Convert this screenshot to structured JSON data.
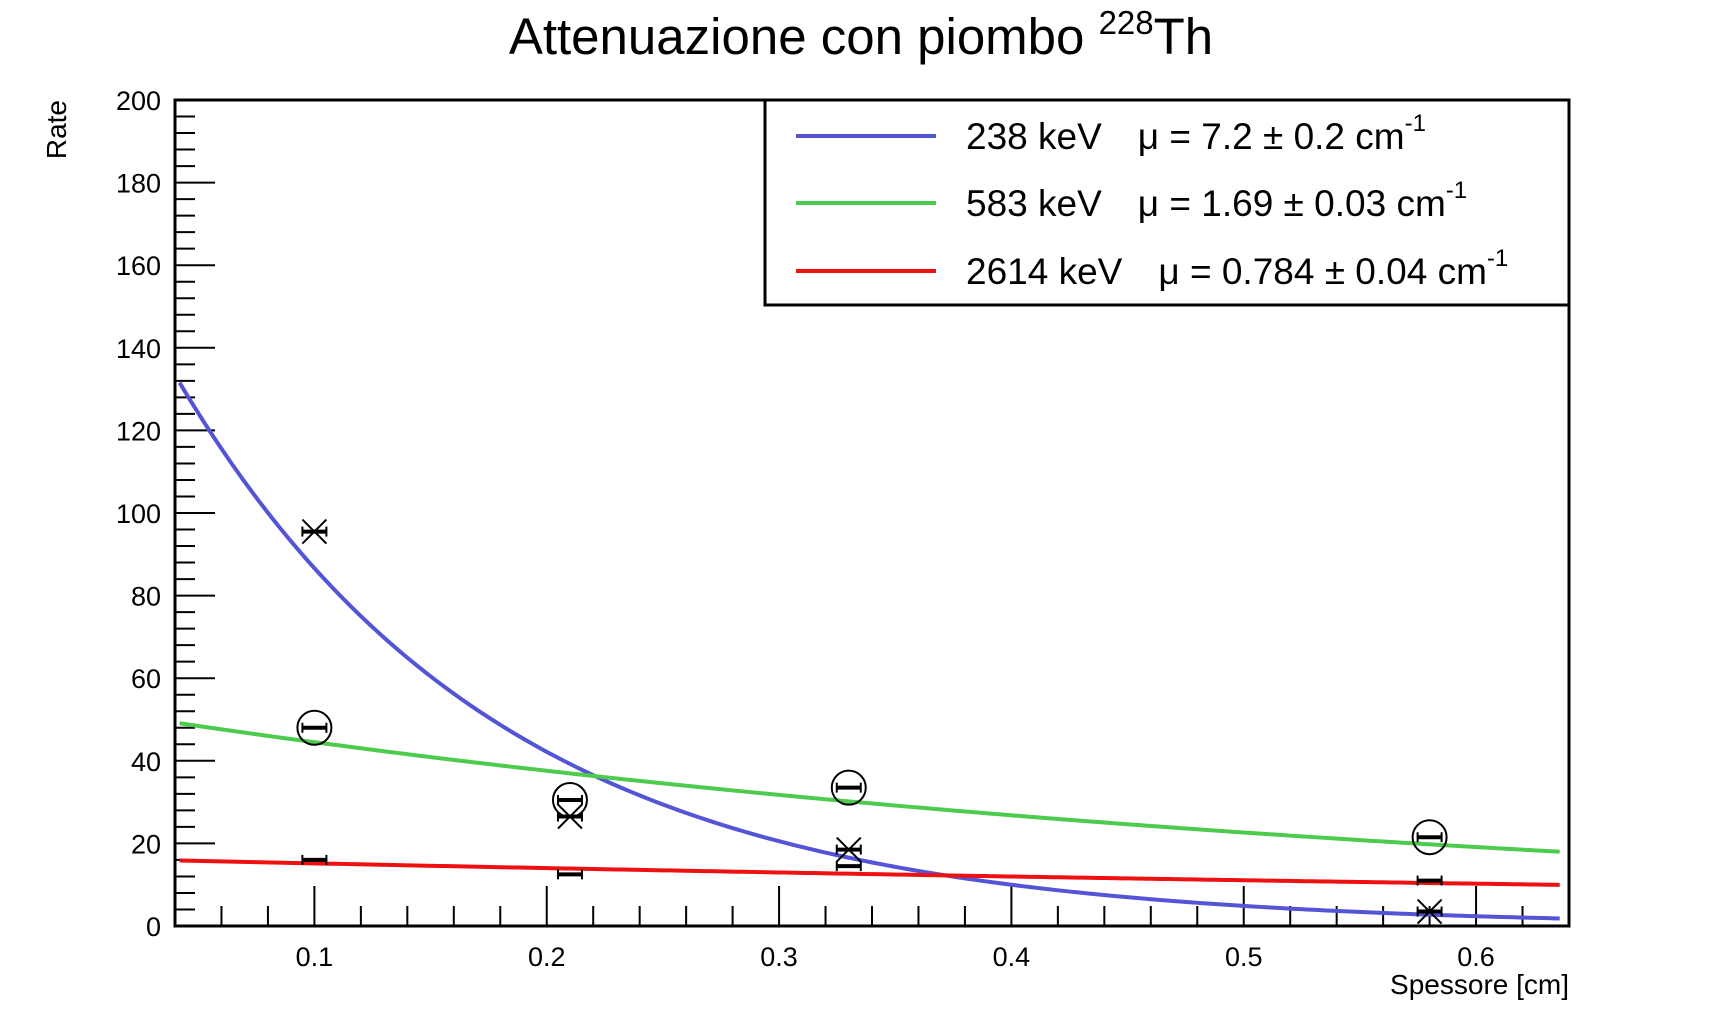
{
  "chart_data": {
    "type": "scatter",
    "title": {
      "main": "Attenuazione con piombo ",
      "isotope_mass": "228",
      "isotope_symbol": "Th"
    },
    "xlabel": "Spessore [cm]",
    "ylabel": "Rate",
    "xlim": [
      0.04,
      0.64
    ],
    "ylim": [
      0,
      200
    ],
    "x_ticks": [
      0.1,
      0.2,
      0.3,
      0.4,
      0.5,
      0.6
    ],
    "x_tick_labels": [
      "0.1",
      "0.2",
      "0.3",
      "0.4",
      "0.5",
      "0.6"
    ],
    "y_ticks": [
      0,
      20,
      40,
      60,
      80,
      100,
      120,
      140,
      160,
      180,
      200
    ],
    "y_tick_labels": [
      "0",
      "20",
      "40",
      "60",
      "80",
      "100",
      "120",
      "140",
      "160",
      "180",
      "200"
    ],
    "grid": false,
    "legend_position": "top-right",
    "series": [
      {
        "name": "238 keV",
        "legend_mu": "μ = 7.2 ± 0.2 cm",
        "legend_exp": "-1",
        "color": "#5454d6",
        "marker": "cross",
        "points": [
          {
            "x": 0.1,
            "y": 95.5
          },
          {
            "x": 0.21,
            "y": 26.5
          },
          {
            "x": 0.33,
            "y": 18.5
          },
          {
            "x": 0.58,
            "y": 3.5
          }
        ],
        "fit": {
          "amplitude": 178.0,
          "mu": 7.2
        }
      },
      {
        "name": "583 keV",
        "legend_mu": "μ = 1.69 ± 0.03 cm",
        "legend_exp": "-1",
        "color": "#4ccb4c",
        "marker": "circle",
        "points": [
          {
            "x": 0.1,
            "y": 48
          },
          {
            "x": 0.21,
            "y": 30.5
          },
          {
            "x": 0.33,
            "y": 33.5
          },
          {
            "x": 0.58,
            "y": 21.5
          }
        ],
        "fit": {
          "amplitude": 52.7,
          "mu": 1.69
        }
      },
      {
        "name": "2614 keV",
        "legend_mu": "μ = 0.784 ± 0.04 cm",
        "legend_exp": "-1",
        "color": "#ee1111",
        "marker": "none",
        "points": [
          {
            "x": 0.1,
            "y": 16
          },
          {
            "x": 0.21,
            "y": 12.5
          },
          {
            "x": 0.33,
            "y": 14.5
          },
          {
            "x": 0.58,
            "y": 11
          }
        ],
        "fit": {
          "amplitude": 16.4,
          "mu": 0.784
        }
      }
    ]
  }
}
